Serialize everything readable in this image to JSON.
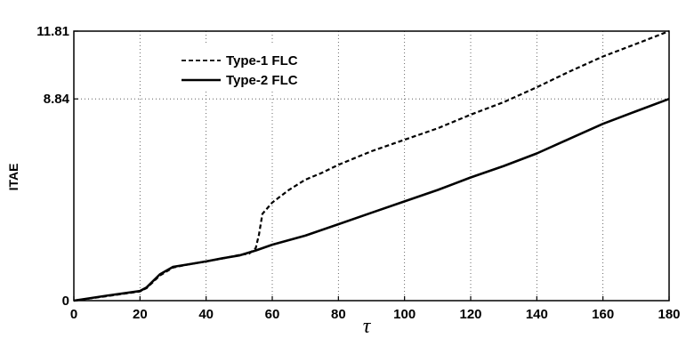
{
  "chart_data": {
    "type": "line",
    "xlabel": "τ",
    "ylabel": "ITAE",
    "xlim": [
      0,
      180
    ],
    "ylim": [
      0,
      11.81
    ],
    "xticks": [
      0,
      20,
      40,
      60,
      80,
      100,
      120,
      140,
      160,
      180
    ],
    "yticks": [
      0,
      8.84,
      11.81
    ],
    "ytick_labels": [
      "0",
      "8.84",
      "11.81"
    ],
    "grid": true,
    "legend_position": "top-left",
    "series": [
      {
        "name": "Type-1 FLC",
        "style": "dashed",
        "color": "#000000",
        "x": [
          0,
          10,
          20,
          22,
          26,
          30,
          35,
          40,
          45,
          50,
          53,
          55,
          56,
          57,
          60,
          65,
          70,
          75,
          80,
          90,
          100,
          110,
          120,
          130,
          140,
          150,
          160,
          170,
          180
        ],
        "y": [
          0,
          0.2,
          0.4,
          0.55,
          1.1,
          1.45,
          1.6,
          1.72,
          1.85,
          2.0,
          2.06,
          2.3,
          2.9,
          3.8,
          4.3,
          4.85,
          5.3,
          5.6,
          5.95,
          6.55,
          7.05,
          7.55,
          8.15,
          8.7,
          9.35,
          10.05,
          10.7,
          11.25,
          11.81
        ]
      },
      {
        "name": "Type-2 FLC",
        "style": "solid",
        "color": "#000000",
        "x": [
          0,
          10,
          20,
          22,
          26,
          30,
          35,
          40,
          45,
          50,
          55,
          60,
          70,
          80,
          90,
          100,
          110,
          120,
          130,
          140,
          150,
          160,
          170,
          180
        ],
        "y": [
          0,
          0.22,
          0.42,
          0.58,
          1.15,
          1.48,
          1.6,
          1.72,
          1.86,
          1.98,
          2.2,
          2.45,
          2.85,
          3.35,
          3.85,
          4.35,
          4.85,
          5.4,
          5.9,
          6.45,
          7.1,
          7.75,
          8.3,
          8.84
        ]
      }
    ]
  }
}
